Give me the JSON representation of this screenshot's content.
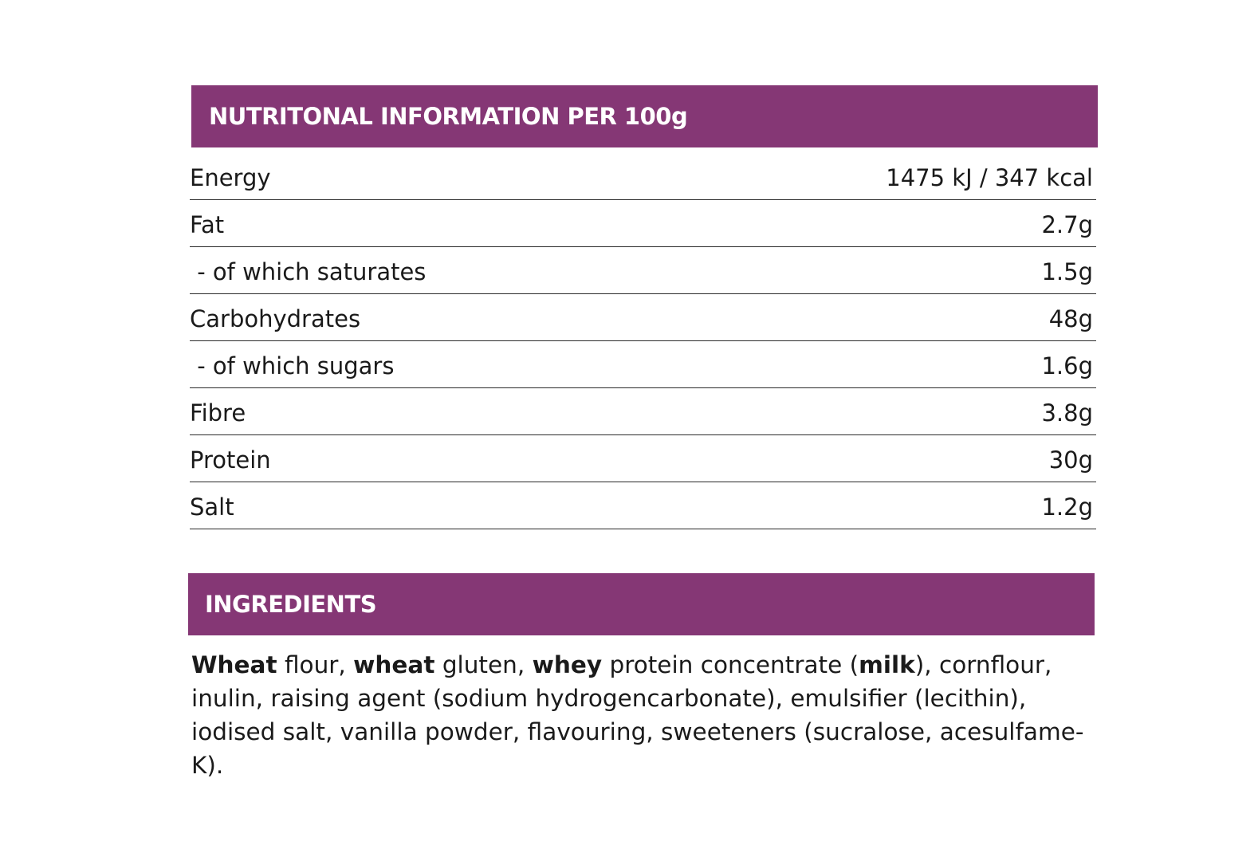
{
  "nutrition": {
    "header": "NUTRITONAL INFORMATION PER 100g",
    "rows": [
      {
        "label": "Energy",
        "value": "1475 kJ / 347 kcal"
      },
      {
        "label": "Fat",
        "value": "2.7g"
      },
      {
        "label": " - of which saturates",
        "value": "1.5g"
      },
      {
        "label": "Carbohydrates",
        "value": "48g"
      },
      {
        "label": " - of which sugars",
        "value": "1.6g"
      },
      {
        "label": "Fibre",
        "value": "3.8g"
      },
      {
        "label": "Protein",
        "value": "30g"
      },
      {
        "label": "Salt",
        "value": "1.2g"
      }
    ]
  },
  "ingredients": {
    "header": "INGREDIENTS",
    "segments": [
      {
        "text": "Wheat",
        "bold": true
      },
      {
        "text": " flour, ",
        "bold": false
      },
      {
        "text": "wheat",
        "bold": true
      },
      {
        "text": " gluten, ",
        "bold": false
      },
      {
        "text": "whey",
        "bold": true
      },
      {
        "text": " protein concentrate (",
        "bold": false
      },
      {
        "text": "milk",
        "bold": true
      },
      {
        "text": "), cornflour, inulin, raising agent (sodium hydrogencarbonate), emulsifier (lecithin), iodised salt, vanilla powder, flavouring, sweeteners (sucralose, acesulfame-K).",
        "bold": false
      }
    ]
  }
}
